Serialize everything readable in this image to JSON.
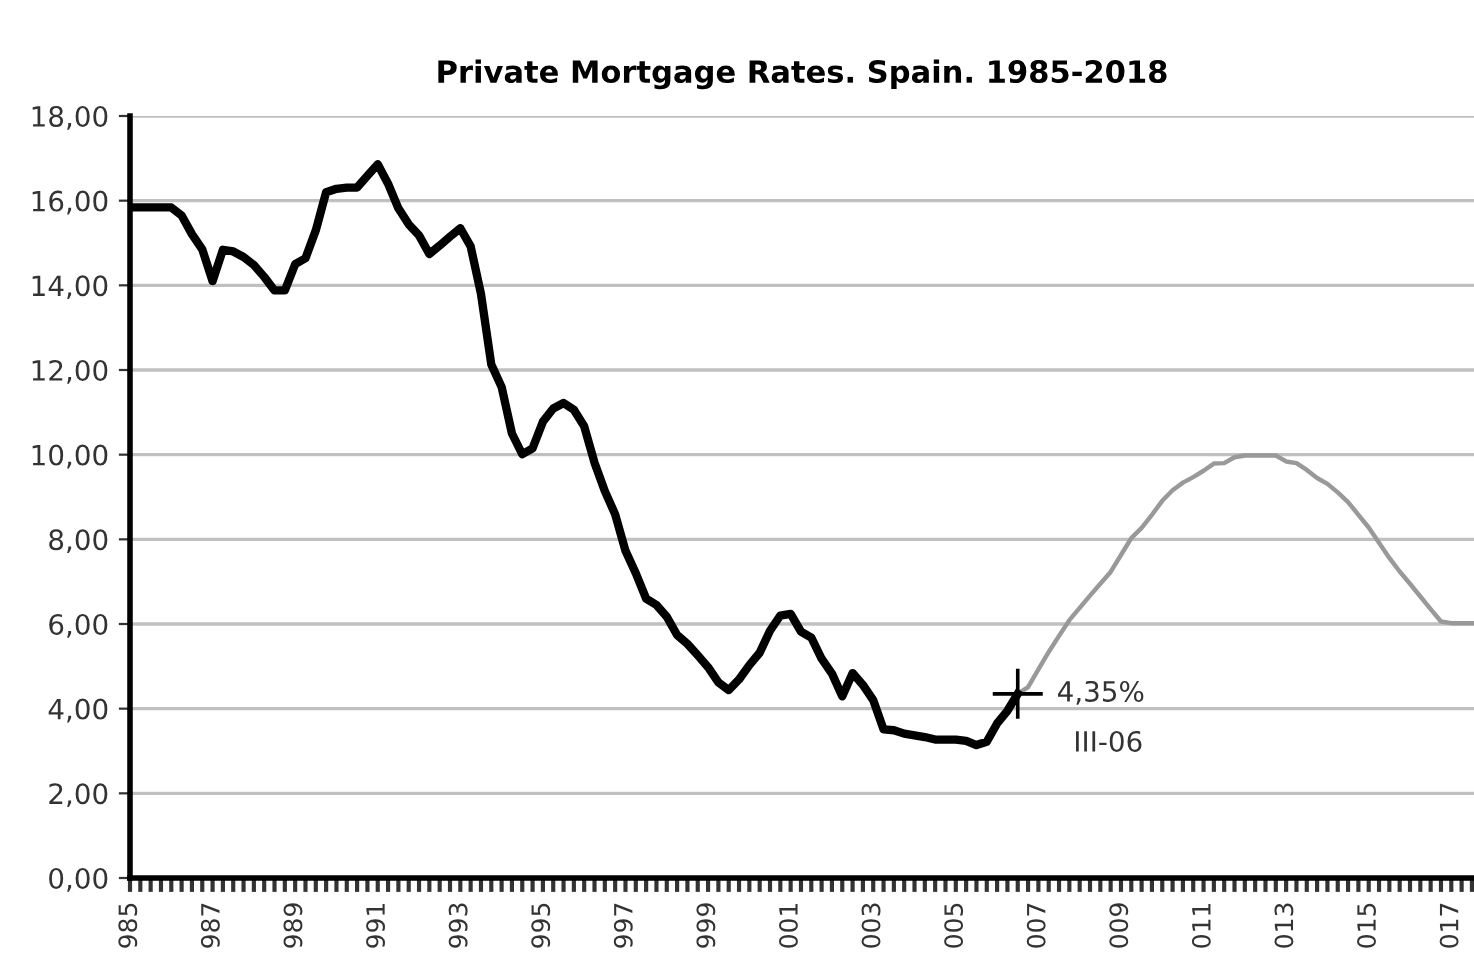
{
  "chart_data": {
    "type": "line",
    "title": "Private Mortgage Rates. Spain. 1985-2018",
    "categories": [
      "985",
      null,
      null,
      null,
      null,
      null,
      null,
      null,
      "987",
      null,
      null,
      null,
      null,
      null,
      null,
      null,
      "989",
      null,
      null,
      null,
      null,
      null,
      null,
      null,
      "991",
      null,
      null,
      null,
      null,
      null,
      null,
      null,
      "993",
      null,
      null,
      null,
      null,
      null,
      null,
      null,
      "995",
      null,
      null,
      null,
      null,
      null,
      null,
      null,
      "997",
      null,
      null,
      null,
      null,
      null,
      null,
      null,
      "999",
      null,
      null,
      null,
      null,
      null,
      null,
      null,
      "001",
      null,
      null,
      null,
      null,
      null,
      null,
      null,
      "003",
      null,
      null,
      null,
      null,
      null,
      null,
      null,
      "005",
      null,
      null,
      null,
      null,
      null,
      null,
      null,
      "007",
      null,
      null,
      null,
      null,
      null,
      null,
      null,
      "009",
      null,
      null,
      null,
      null,
      null,
      null,
      null,
      "011",
      null,
      null,
      null,
      null,
      null,
      null,
      null,
      "013",
      null,
      null,
      null,
      null,
      null,
      null,
      null,
      "015",
      null,
      null,
      null,
      null,
      null,
      null,
      null,
      "017",
      null,
      null
    ],
    "series": [
      {
        "color": "#000000",
        "values": [
          15.84,
          15.84,
          15.84,
          15.84,
          15.84,
          15.65,
          15.21,
          14.85,
          14.1,
          14.84,
          14.8,
          14.67,
          14.48,
          14.2,
          13.88,
          13.88,
          14.5,
          14.64,
          15.3,
          16.2,
          16.28,
          16.31,
          16.31,
          16.59,
          16.86,
          16.4,
          15.82,
          15.44,
          15.18,
          14.74,
          14.94,
          15.15,
          15.35,
          14.92,
          13.8,
          12.13,
          11.6,
          10.5,
          10.01,
          10.15,
          10.78,
          11.09,
          11.22,
          11.06,
          10.67,
          9.81,
          9.14,
          8.59,
          7.73,
          7.2,
          6.6,
          6.45,
          6.17,
          5.74,
          5.53,
          5.26,
          4.98,
          4.62,
          4.44,
          4.69,
          5.03,
          5.32,
          5.84,
          6.2,
          6.24,
          5.82,
          5.68,
          5.18,
          4.83,
          4.29,
          4.84,
          4.56,
          4.2,
          3.51,
          3.49,
          3.41,
          3.37,
          3.33,
          3.27,
          3.27,
          3.27,
          3.24,
          3.14,
          3.22,
          3.65,
          3.95,
          4.35,
          null,
          null,
          null,
          null,
          null,
          null,
          null,
          null,
          null,
          null,
          null,
          null,
          null,
          null,
          null,
          null,
          null,
          null,
          null,
          null,
          null,
          null,
          null,
          null,
          null,
          null,
          null,
          null,
          null,
          null,
          null,
          null,
          null,
          null,
          null,
          null,
          null,
          null,
          null,
          null,
          null,
          null,
          null,
          null
        ]
      },
      {
        "color": "#999999",
        "values": [
          null,
          null,
          null,
          null,
          null,
          null,
          null,
          null,
          null,
          null,
          null,
          null,
          null,
          null,
          null,
          null,
          null,
          null,
          null,
          null,
          null,
          null,
          null,
          null,
          null,
          null,
          null,
          null,
          null,
          null,
          null,
          null,
          null,
          null,
          null,
          null,
          null,
          null,
          null,
          null,
          null,
          null,
          null,
          null,
          null,
          null,
          null,
          null,
          null,
          null,
          null,
          null,
          null,
          null,
          null,
          null,
          null,
          null,
          null,
          null,
          null,
          null,
          null,
          null,
          null,
          null,
          null,
          null,
          null,
          null,
          null,
          null,
          null,
          null,
          null,
          null,
          null,
          null,
          null,
          null,
          null,
          null,
          null,
          null,
          null,
          null,
          4.35,
          4.51,
          4.93,
          5.34,
          5.72,
          6.09,
          6.38,
          6.67,
          6.95,
          7.23,
          7.63,
          8.03,
          8.27,
          8.58,
          8.91,
          9.16,
          9.34,
          9.47,
          9.62,
          9.79,
          9.8,
          9.94,
          9.98,
          9.98,
          9.98,
          9.98,
          9.84,
          9.8,
          9.64,
          9.45,
          9.31,
          9.11,
          8.88,
          8.58,
          8.28,
          7.92,
          7.56,
          7.24,
          6.95,
          6.65,
          6.35,
          6.06,
          6.02,
          6.02,
          6.02
        ]
      }
    ],
    "ylim": [
      0,
      18
    ],
    "yticks": [
      {
        "value": 0,
        "label": "0,00"
      },
      {
        "value": 2,
        "label": "2,00"
      },
      {
        "value": 4,
        "label": "4,00"
      },
      {
        "value": 6,
        "label": "6,00"
      },
      {
        "value": 8,
        "label": "8,00"
      },
      {
        "value": 10,
        "label": "10,00"
      },
      {
        "value": 12,
        "label": "12,00"
      },
      {
        "value": 14,
        "label": "14,00"
      },
      {
        "value": 16,
        "label": "16,00"
      },
      {
        "value": 18,
        "label": "18,00"
      }
    ],
    "grid": "y",
    "marker": "none",
    "line_style": "solid",
    "annotations": [
      "4,35%",
      "III-06"
    ]
  }
}
